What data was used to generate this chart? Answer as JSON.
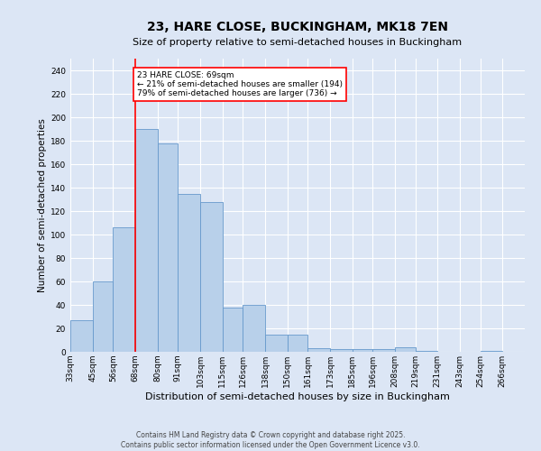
{
  "title": "23, HARE CLOSE, BUCKINGHAM, MK18 7EN",
  "subtitle": "Size of property relative to semi-detached houses in Buckingham",
  "xlabel": "Distribution of semi-detached houses by size in Buckingham",
  "ylabel": "Number of semi-detached properties",
  "bins": [
    "33sqm",
    "45sqm",
    "56sqm",
    "68sqm",
    "80sqm",
    "91sqm",
    "103sqm",
    "115sqm",
    "126sqm",
    "138sqm",
    "150sqm",
    "161sqm",
    "173sqm",
    "185sqm",
    "196sqm",
    "208sqm",
    "219sqm",
    "231sqm",
    "243sqm",
    "254sqm",
    "266sqm"
  ],
  "bin_edges": [
    33,
    45,
    56,
    68,
    80,
    91,
    103,
    115,
    126,
    138,
    150,
    161,
    173,
    185,
    196,
    208,
    219,
    231,
    243,
    254,
    266
  ],
  "values": [
    27,
    60,
    106,
    190,
    178,
    135,
    128,
    38,
    40,
    15,
    15,
    3,
    2,
    2,
    2,
    4,
    1,
    0,
    0,
    1
  ],
  "bar_color": "#b8d0ea",
  "bar_edge_color": "#6699cc",
  "bg_color": "#dce6f5",
  "grid_color": "#ffffff",
  "vline_x": 68,
  "vline_color": "red",
  "annotation_text": "23 HARE CLOSE: 69sqm\n← 21% of semi-detached houses are smaller (194)\n79% of semi-detached houses are larger (736) →",
  "footnote": "Contains HM Land Registry data © Crown copyright and database right 2025.\nContains public sector information licensed under the Open Government Licence v3.0.",
  "ylim": [
    0,
    250
  ],
  "yticks": [
    0,
    20,
    40,
    60,
    80,
    100,
    120,
    140,
    160,
    180,
    200,
    220,
    240
  ],
  "title_fontsize": 10,
  "subtitle_fontsize": 8,
  "xlabel_fontsize": 8,
  "ylabel_fontsize": 7.5,
  "tick_fontsize": 6.5,
  "annotation_fontsize": 6.5,
  "footnote_fontsize": 5.5
}
